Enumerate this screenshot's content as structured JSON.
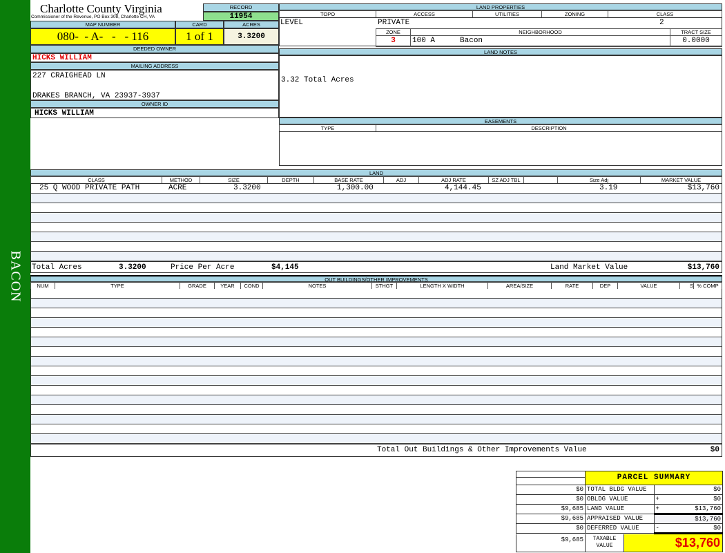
{
  "sidebar": {
    "label": "BACON"
  },
  "header": {
    "county": "Charlotte County Virginia",
    "office": "Commissioner of the Revenue, PO Box 308, Charlotte CH, VA",
    "record_label": "RECORD",
    "record": "11954"
  },
  "parcel": {
    "map_label": "MAP NUMBER",
    "map": "080-  - A-   -   - 116",
    "card_label": "CARD",
    "card": "1 of 1",
    "acres_label": "ACRES",
    "acres": "3.3200"
  },
  "owner": {
    "deeded_label": "DEEDED OWNER",
    "deeded": "HICKS WILLIAM",
    "mailing_label": "MAILING ADDRESS",
    "address1": "227 CRAIGHEAD LN",
    "address2": "DRAKES BRANCH, VA 23937-3937",
    "owner_id_label": "OWNER ID",
    "owner_id": "HICKS WILLIAM"
  },
  "land_props": {
    "title": "LAND PROPERTIES",
    "topo_label": "TOPO",
    "access_label": "ACCESS",
    "utilities_label": "UTILITIES",
    "zoning_label": "ZONING",
    "class_label": "CLASS",
    "topo": "LEVEL",
    "access": "PRIVATE",
    "class": "2",
    "zone_label": "ZONE",
    "neighborhood_label": "NEIGHBORHOOD",
    "tract_label": "TRACT SIZE",
    "zone": "3",
    "neighborhood_code": "100 A",
    "neighborhood": "Bacon",
    "tract": "0.0000"
  },
  "land_notes": {
    "title": "LAND NOTES",
    "text": "3.32 Total Acres"
  },
  "easements": {
    "title": "EASEMENTS",
    "type_label": "TYPE",
    "desc_label": "DESCRIPTION"
  },
  "land": {
    "title": "LAND",
    "columns": [
      "CLASS",
      "METHOD",
      "SIZE",
      "DEPTH",
      "BASE RATE",
      "ADJ",
      "ADJ RATE",
      "SZ ADJ TBL",
      "",
      "Size Adj",
      "MARKET VALUE"
    ],
    "row": {
      "class": "25 Q WOOD PRIVATE PATH",
      "method": "ACRE",
      "size": "3.3200",
      "base_rate": "1,300.00",
      "adj_rate": "4,144.45",
      "size_adj": "3.19",
      "market": "$13,760"
    },
    "total_acres_label": "Total Acres",
    "total_acres": "3.3200",
    "ppa_label": "Price Per Acre",
    "ppa": "$4,145",
    "lmv_label": "Land Market Value",
    "lmv": "$13,760"
  },
  "outbuildings": {
    "title": "OUT BUILDINGS/OTHER IMPROVEMENTS",
    "columns": [
      "NUM",
      "TYPE",
      "GRADE",
      "YEAR",
      "COND",
      "NOTES",
      "STHGT",
      "LENGTH X WIDTH",
      "AREA/SIZE",
      "RATE",
      "DEP",
      "VALUE",
      "S",
      "% COMP"
    ],
    "total_label": "Total Out Buildings & Other Improvements Value",
    "total": "$0"
  },
  "summary": {
    "title": "PARCEL SUMMARY",
    "rows": [
      {
        "prior": "$0",
        "label": "TOTAL BLDG VALUE",
        "op": "",
        "value": "$0"
      },
      {
        "prior": "$0",
        "label": "OBLDG VALUE",
        "op": "+",
        "value": "$0"
      },
      {
        "prior": "$9,685",
        "label": "LAND VALUE",
        "op": "+",
        "value": "$13,760"
      },
      {
        "prior": "$9,685",
        "label": "APPRAISED VALUE",
        "op": "",
        "value": "$13,760"
      },
      {
        "prior": "$0",
        "label": "DEFERRED VALUE",
        "op": "-",
        "value": "$0"
      }
    ],
    "taxable_prior": "$9,685",
    "taxable_label": "TAXABLE VALUE",
    "taxable": "$13,760"
  }
}
